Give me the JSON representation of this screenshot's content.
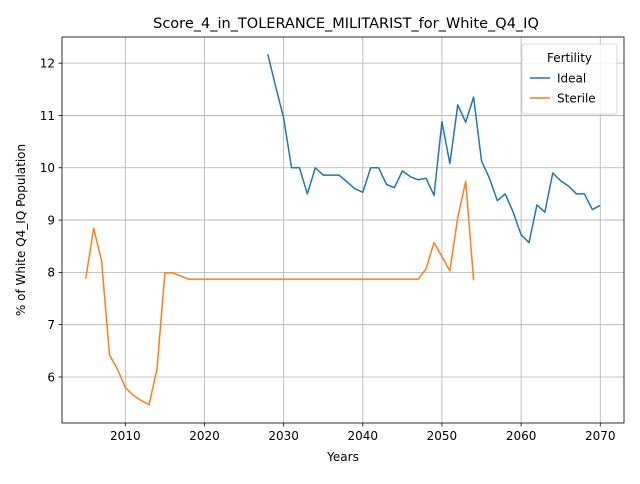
{
  "chart_data": {
    "type": "line",
    "title": "Score_4_in_TOLERANCE_MILITARIST_for_White_Q4_IQ",
    "xlabel": "Years",
    "ylabel": "% of White Q4_IQ Population",
    "xlim": [
      2002,
      2073
    ],
    "ylim": [
      5.12,
      12.5
    ],
    "xticks": [
      2010,
      2020,
      2030,
      2040,
      2050,
      2060,
      2070
    ],
    "yticks": [
      6,
      7,
      8,
      9,
      10,
      11,
      12
    ],
    "grid": true,
    "legend": {
      "title": "Fertility",
      "position": "top-right"
    },
    "series": [
      {
        "name": "Ideal",
        "color": "#1f77b4",
        "points": [
          [
            2028,
            12.17
          ],
          [
            2029,
            11.55
          ],
          [
            2030,
            10.95
          ],
          [
            2031,
            10.0
          ],
          [
            2032,
            10.0
          ],
          [
            2033,
            9.5
          ],
          [
            2034,
            10.0
          ],
          [
            2035,
            9.86
          ],
          [
            2036,
            9.86
          ],
          [
            2037,
            9.86
          ],
          [
            2038,
            9.73
          ],
          [
            2039,
            9.6
          ],
          [
            2040,
            9.53
          ],
          [
            2041,
            10.0
          ],
          [
            2042,
            10.0
          ],
          [
            2043,
            9.68
          ],
          [
            2044,
            9.62
          ],
          [
            2045,
            9.94
          ],
          [
            2046,
            9.83
          ],
          [
            2047,
            9.77
          ],
          [
            2048,
            9.8
          ],
          [
            2049,
            9.47
          ],
          [
            2050,
            10.88
          ],
          [
            2051,
            10.08
          ],
          [
            2052,
            11.2
          ],
          [
            2053,
            10.87
          ],
          [
            2054,
            11.35
          ],
          [
            2055,
            10.13
          ],
          [
            2056,
            9.8
          ],
          [
            2057,
            9.37
          ],
          [
            2058,
            9.5
          ],
          [
            2059,
            9.15
          ],
          [
            2060,
            8.72
          ],
          [
            2061,
            8.57
          ],
          [
            2062,
            9.29
          ],
          [
            2063,
            9.15
          ],
          [
            2064,
            9.9
          ],
          [
            2065,
            9.75
          ],
          [
            2066,
            9.65
          ],
          [
            2067,
            9.5
          ],
          [
            2068,
            9.5
          ],
          [
            2069,
            9.2
          ],
          [
            2070,
            9.28
          ]
        ]
      },
      {
        "name": "Sterile",
        "color": "#ff7f0e",
        "points": [
          [
            2005,
            7.88
          ],
          [
            2006,
            8.84
          ],
          [
            2007,
            8.22
          ],
          [
            2008,
            6.42
          ],
          [
            2009,
            6.15
          ],
          [
            2010,
            5.8
          ],
          [
            2011,
            5.65
          ],
          [
            2012,
            5.55
          ],
          [
            2013,
            5.47
          ],
          [
            2014,
            6.15
          ],
          [
            2015,
            7.99
          ],
          [
            2016,
            7.99
          ],
          [
            2017,
            7.93
          ],
          [
            2018,
            7.87
          ],
          [
            2019,
            7.87
          ],
          [
            2020,
            7.87
          ],
          [
            2025,
            7.87
          ],
          [
            2030,
            7.87
          ],
          [
            2035,
            7.87
          ],
          [
            2040,
            7.87
          ],
          [
            2045,
            7.87
          ],
          [
            2047,
            7.87
          ],
          [
            2048,
            8.07
          ],
          [
            2049,
            8.57
          ],
          [
            2050,
            8.3
          ],
          [
            2051,
            8.03
          ],
          [
            2052,
            9.05
          ],
          [
            2053,
            9.74
          ],
          [
            2054,
            7.85
          ]
        ]
      }
    ]
  }
}
